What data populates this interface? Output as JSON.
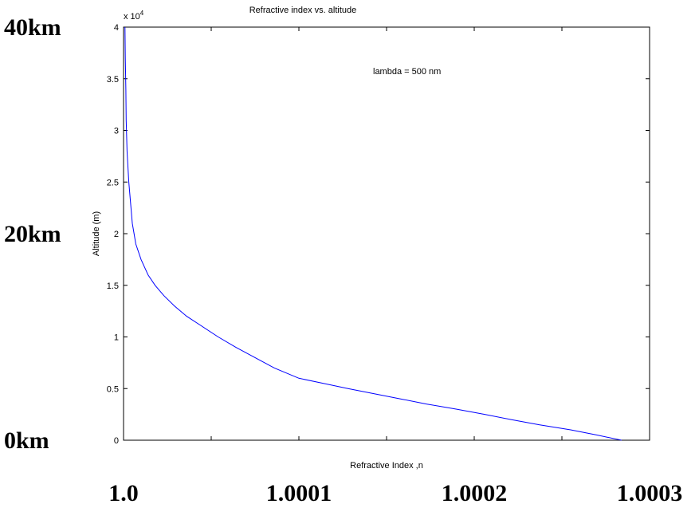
{
  "chart_data": {
    "type": "line",
    "title": "Refractive index vs. altitude",
    "xlabel": "Refractive Index ,n",
    "ylabel": "Altitude (m)",
    "annotation": "lambda = 500 nm",
    "y_exponent_label": "x 10",
    "y_exponent_power": "4",
    "xlim": [
      1.0,
      1.0003
    ],
    "ylim": [
      0,
      40000
    ],
    "grid": false,
    "y_ticks": [
      {
        "value": 0,
        "label": "0"
      },
      {
        "value": 5000,
        "label": "0.5"
      },
      {
        "value": 10000,
        "label": "1"
      },
      {
        "value": 15000,
        "label": "1.5"
      },
      {
        "value": 20000,
        "label": "2"
      },
      {
        "value": 25000,
        "label": "2.5"
      },
      {
        "value": 30000,
        "label": "3"
      },
      {
        "value": 35000,
        "label": "3.5"
      },
      {
        "value": 40000,
        "label": "4"
      }
    ],
    "x_minor_ticks": [
      1.0,
      1.00005,
      1.0001,
      1.00015,
      1.0002,
      1.00025,
      1.0003
    ],
    "overlay_x_labels": [
      {
        "value": 1.0,
        "label": "1.0"
      },
      {
        "value": 1.0001,
        "label": "1.0001"
      },
      {
        "value": 1.0002,
        "label": "1.0002"
      },
      {
        "value": 1.0003,
        "label": "1.0003"
      }
    ],
    "overlay_y_labels": [
      {
        "value": 40000,
        "label": "40km"
      },
      {
        "value": 20000,
        "label": "20km"
      },
      {
        "value": 0,
        "label": "0km"
      }
    ],
    "series": [
      {
        "color": "#0000ff",
        "x": [
          1.000284,
          1.00027,
          1.000255,
          1.000237,
          1.000221,
          1.000206,
          1.00019,
          1.000173,
          1.000158,
          1.000143,
          1.000128,
          1.000114,
          1.0001,
          1.000086,
          1.000075,
          1.000064,
          1.000054,
          1.000045,
          1.000036,
          1.000029,
          1.000023,
          1.000018,
          1.000014,
          1.00001,
          1.000007,
          1.000005,
          1.000004,
          1.000003,
          1.000002,
          1.0000015,
          1.0000013,
          1.000001,
          1.0000008
        ],
        "y": [
          0,
          500,
          1000,
          1500,
          2000,
          2500,
          3000,
          3500,
          4000,
          4500,
          5000,
          5500,
          6000,
          7000,
          8000,
          9000,
          10000,
          11000,
          12000,
          13000,
          14000,
          15000,
          16000,
          17500,
          19000,
          21000,
          23000,
          25000,
          28000,
          31000,
          34000,
          37000,
          40000
        ]
      }
    ]
  }
}
